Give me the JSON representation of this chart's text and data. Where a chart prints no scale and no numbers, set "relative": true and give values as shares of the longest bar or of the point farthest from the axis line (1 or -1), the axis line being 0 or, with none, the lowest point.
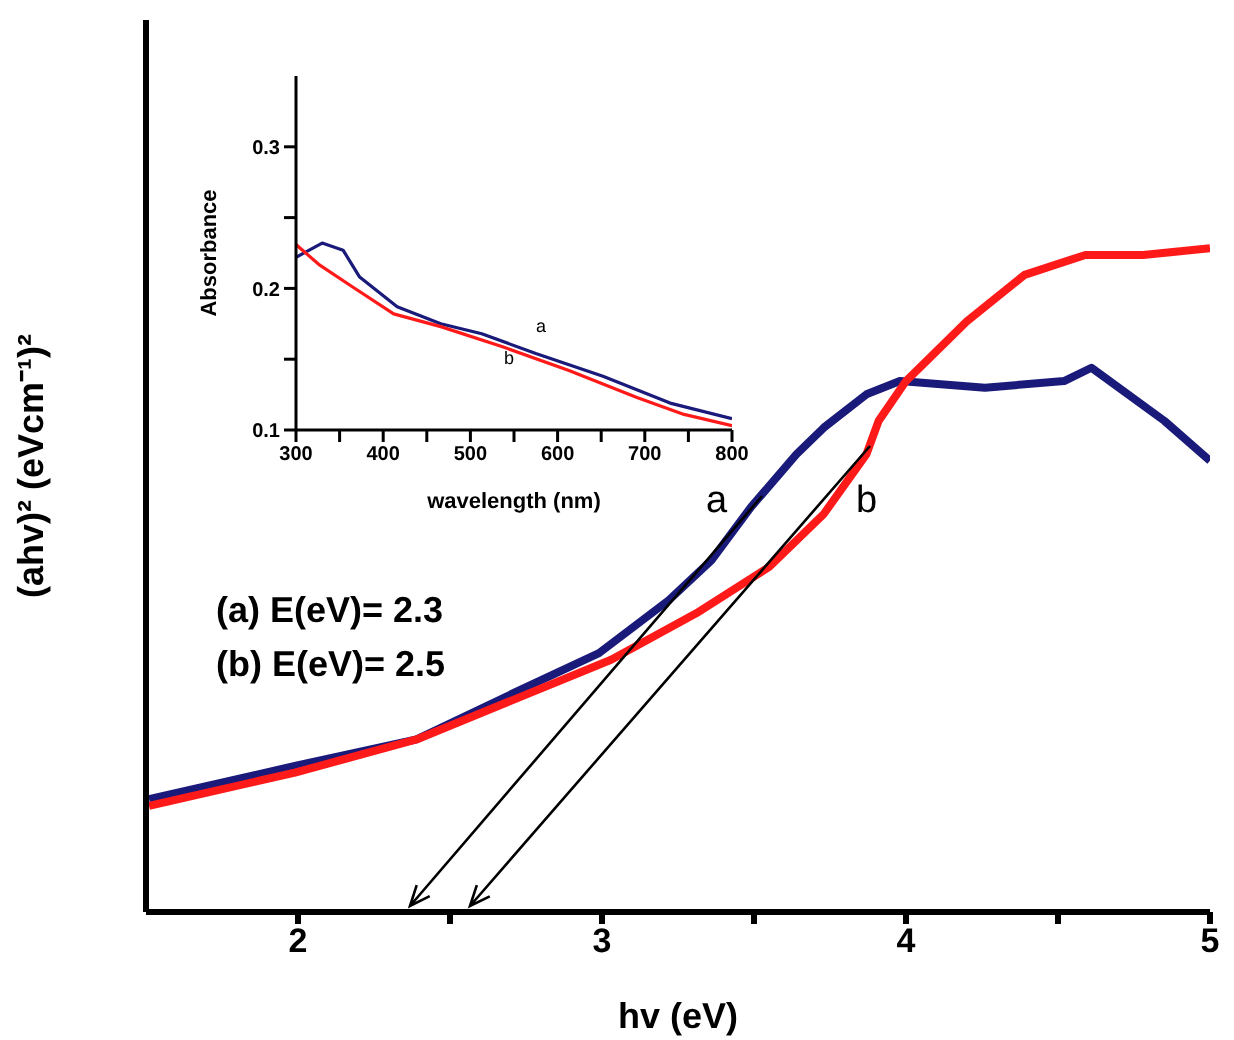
{
  "chart_data": [
    {
      "type": "line",
      "relative": true,
      "xlabel": "hv (eV)",
      "ylabel": "(ahv)² (eVcm⁻¹)²",
      "xlim": [
        1.5,
        5
      ],
      "xticks": [
        2,
        {
          "value": 2.5,
          "label": null
        },
        3,
        {
          "value": 3.5,
          "label": null
        },
        4,
        {
          "value": 4.5,
          "label": null
        },
        5
      ],
      "series": [
        {
          "color": "#1a1a7a",
          "x": [
            1.51,
            1.99,
            2.39,
            2.71,
            2.99,
            3.22,
            3.36,
            3.49,
            3.64,
            3.73,
            3.87,
            3.98,
            4.26,
            4.52,
            4.61,
            4.85,
            5.0
          ],
          "values": [
            0.17,
            0.22,
            0.26,
            0.33,
            0.39,
            0.47,
            0.53,
            0.61,
            0.69,
            0.73,
            0.78,
            0.8,
            0.79,
            0.8,
            0.82,
            0.74,
            0.68
          ]
        },
        {
          "color": "#ff1a1a",
          "x": [
            1.51,
            1.99,
            2.39,
            2.71,
            3.03,
            3.31,
            3.55,
            3.73,
            3.87,
            3.91,
            4.0,
            4.2,
            4.39,
            4.59,
            4.78,
            5.0
          ],
          "values": [
            0.16,
            0.21,
            0.26,
            0.32,
            0.38,
            0.45,
            0.52,
            0.6,
            0.69,
            0.74,
            0.8,
            0.89,
            0.96,
            0.99,
            0.99,
            1
          ]
        }
      ],
      "annotations": [
        "a",
        "b",
        "(a) E(eV)= 2.3",
        "(b) E(eV)= 2.5"
      ]
    },
    {
      "type": "line",
      "xlabel": "wavelength (nm)",
      "ylabel": "Absorbance",
      "xlim": [
        300,
        800
      ],
      "xticks": [
        300,
        {
          "value": 350,
          "label": null
        },
        400,
        {
          "value": 450,
          "label": null
        },
        500,
        {
          "value": 550,
          "label": null
        },
        600,
        {
          "value": 650,
          "label": null
        },
        700,
        {
          "value": 750,
          "label": null
        },
        800
      ],
      "ylim": [
        0.1,
        0.35
      ],
      "yticks": [
        0.1,
        {
          "value": 0.15,
          "label": null
        },
        0.2,
        {
          "value": 0.25,
          "label": null
        },
        0.3
      ],
      "series": [
        {
          "color": "#1a1a7a",
          "x": [
            300,
            330,
            354,
            373,
            416,
            466,
            513,
            575,
            652,
            729,
            800
          ],
          "values": [
            0.222,
            0.232,
            0.227,
            0.208,
            0.187,
            0.175,
            0.168,
            0.154,
            0.138,
            0.119,
            0.108
          ]
        },
        {
          "color": "#ff1a1a",
          "x": [
            300,
            326,
            365,
            412,
            466,
            536,
            613,
            691,
            745,
            800
          ],
          "values": [
            0.231,
            0.217,
            0.201,
            0.182,
            0.173,
            0.159,
            0.142,
            0.123,
            0.111,
            0.103
          ]
        }
      ],
      "annotations": [
        "a",
        "b"
      ]
    }
  ]
}
